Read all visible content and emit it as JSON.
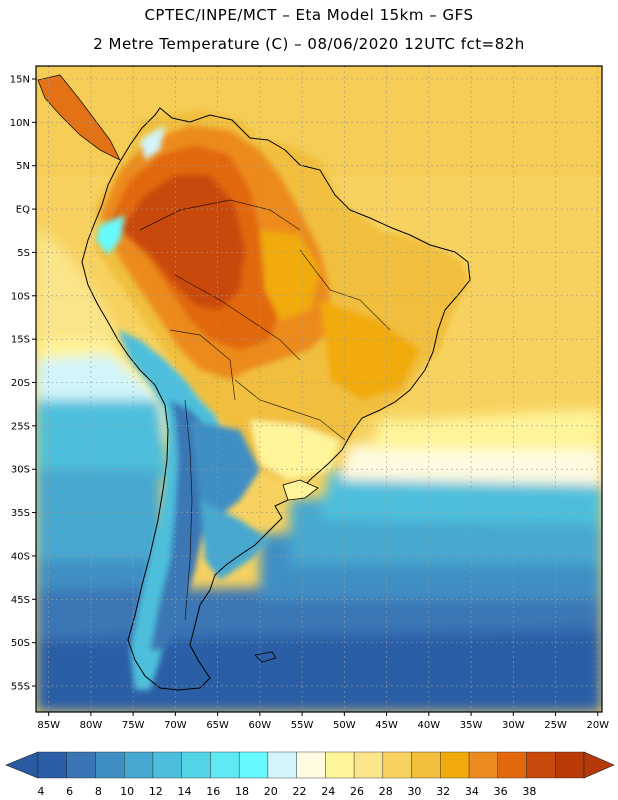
{
  "header": {
    "title_line1": "CPTEC/INPE/MCT –  Eta Model 15km – GFS",
    "title_line2": "2 Metre Temperature (C) – 08/06/2020 12UTC fct=82h"
  },
  "map": {
    "lat_labels": [
      "15N",
      "10N",
      "5N",
      "EQ",
      "5S",
      "10S",
      "15S",
      "20S",
      "25S",
      "30S",
      "35S",
      "40S",
      "45S",
      "50S",
      "55S"
    ],
    "lon_labels": [
      "85W",
      "80W",
      "75W",
      "70W",
      "65W",
      "60W",
      "55W",
      "50W",
      "45W",
      "40W",
      "35W",
      "30W",
      "25W",
      "20W"
    ],
    "lat_values": [
      15,
      10,
      5,
      0,
      -5,
      -10,
      -15,
      -20,
      -25,
      -30,
      -35,
      -40,
      -45,
      -50,
      -55
    ],
    "lon_values": [
      -85,
      -80,
      -75,
      -70,
      -65,
      -60,
      -55,
      -50,
      -45,
      -40,
      -35,
      -30,
      -25,
      -20
    ],
    "lat_range": [
      -58,
      16.5
    ],
    "lon_range": [
      -86.5,
      -19.5
    ]
  },
  "colorbar": {
    "labels": [
      "4",
      "6",
      "8",
      "10",
      "12",
      "14",
      "16",
      "18",
      "20",
      "22",
      "24",
      "26",
      "28",
      "30",
      "32",
      "34",
      "36",
      "38"
    ],
    "colors": [
      "#2b5ea6",
      "#3a76b5",
      "#3f8fc4",
      "#46a8d0",
      "#4dbfdc",
      "#55d3e6",
      "#5fe9f2",
      "#66faff",
      "#d1f5fb",
      "#fffbe0",
      "#fef49a",
      "#fae58a",
      "#f7d260",
      "#f1bf3c",
      "#f1ab0d",
      "#ec8b1f",
      "#e2680e",
      "#c9480b",
      "#b73a07"
    ],
    "left_arrow_color": "#2a5aa2",
    "right_arrow_color": "#b5390a"
  }
}
